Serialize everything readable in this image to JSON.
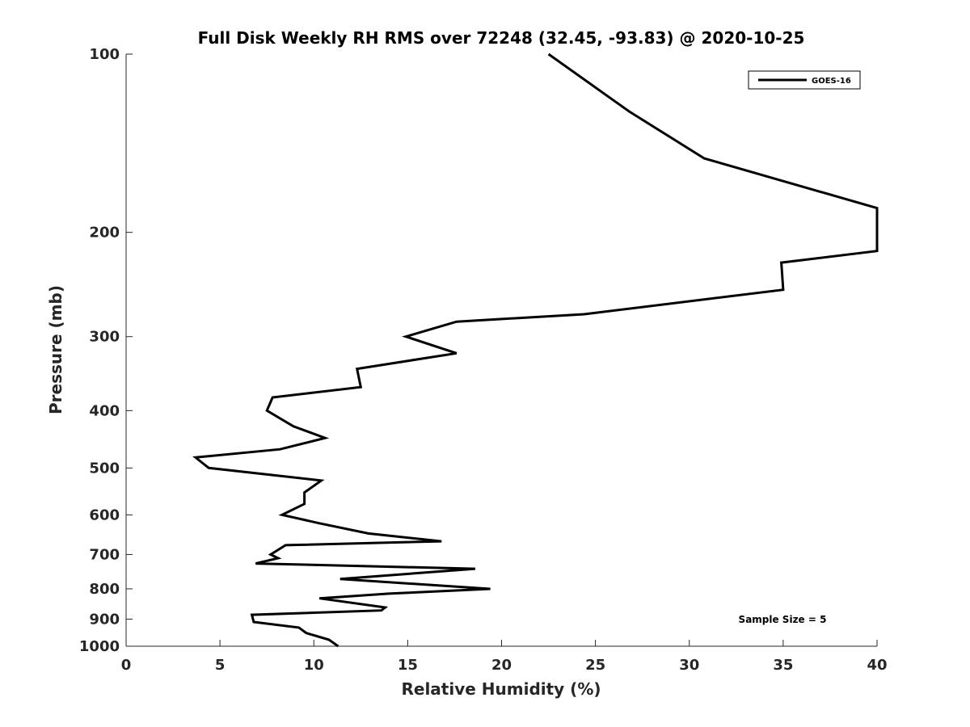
{
  "chart_data": {
    "type": "line",
    "title": "Full Disk Weekly RH RMS over 72248 (32.45, -93.83) @ 2020-10-25",
    "xlabel": "Relative Humidity (%)",
    "ylabel": "Pressure (mb)",
    "xlim": [
      0,
      40
    ],
    "ylim": [
      100,
      1000
    ],
    "y_scale": "log",
    "y_reversed": true,
    "x_ticks": [
      0,
      5,
      10,
      15,
      20,
      25,
      30,
      35,
      40
    ],
    "y_ticks": [
      100,
      200,
      300,
      400,
      500,
      600,
      700,
      800,
      900,
      1000
    ],
    "grid": false,
    "legend_position": "top-right",
    "series": [
      {
        "name": "GOES-16",
        "color": "#000000",
        "points": [
          [
            22.5,
            100
          ],
          [
            26.8,
            125
          ],
          [
            30.8,
            150
          ],
          [
            40.0,
            182
          ],
          [
            40.0,
            215
          ],
          [
            34.9,
            225
          ],
          [
            35.0,
            250
          ],
          [
            24.4,
            275
          ],
          [
            17.6,
            283
          ],
          [
            14.9,
            300
          ],
          [
            17.6,
            320
          ],
          [
            12.3,
            340
          ],
          [
            12.5,
            365
          ],
          [
            7.8,
            380
          ],
          [
            7.5,
            400
          ],
          [
            8.9,
            425
          ],
          [
            10.6,
            445
          ],
          [
            8.2,
            465
          ],
          [
            3.7,
            480
          ],
          [
            4.4,
            500
          ],
          [
            10.4,
            525
          ],
          [
            9.5,
            550
          ],
          [
            9.5,
            575
          ],
          [
            8.3,
            600
          ],
          [
            10.3,
            620
          ],
          [
            12.9,
            645
          ],
          [
            16.8,
            665
          ],
          [
            8.5,
            675
          ],
          [
            7.7,
            700
          ],
          [
            8.1,
            710
          ],
          [
            6.9,
            725
          ],
          [
            18.6,
            740
          ],
          [
            11.4,
            770
          ],
          [
            19.4,
            800
          ],
          [
            14.0,
            815
          ],
          [
            10.3,
            830
          ],
          [
            13.8,
            860
          ],
          [
            13.6,
            870
          ],
          [
            6.7,
            885
          ],
          [
            6.8,
            910
          ],
          [
            9.2,
            930
          ],
          [
            9.6,
            950
          ],
          [
            10.8,
            975
          ],
          [
            11.3,
            1000
          ]
        ]
      }
    ],
    "annotations": [
      "Sample Size = 5"
    ]
  }
}
